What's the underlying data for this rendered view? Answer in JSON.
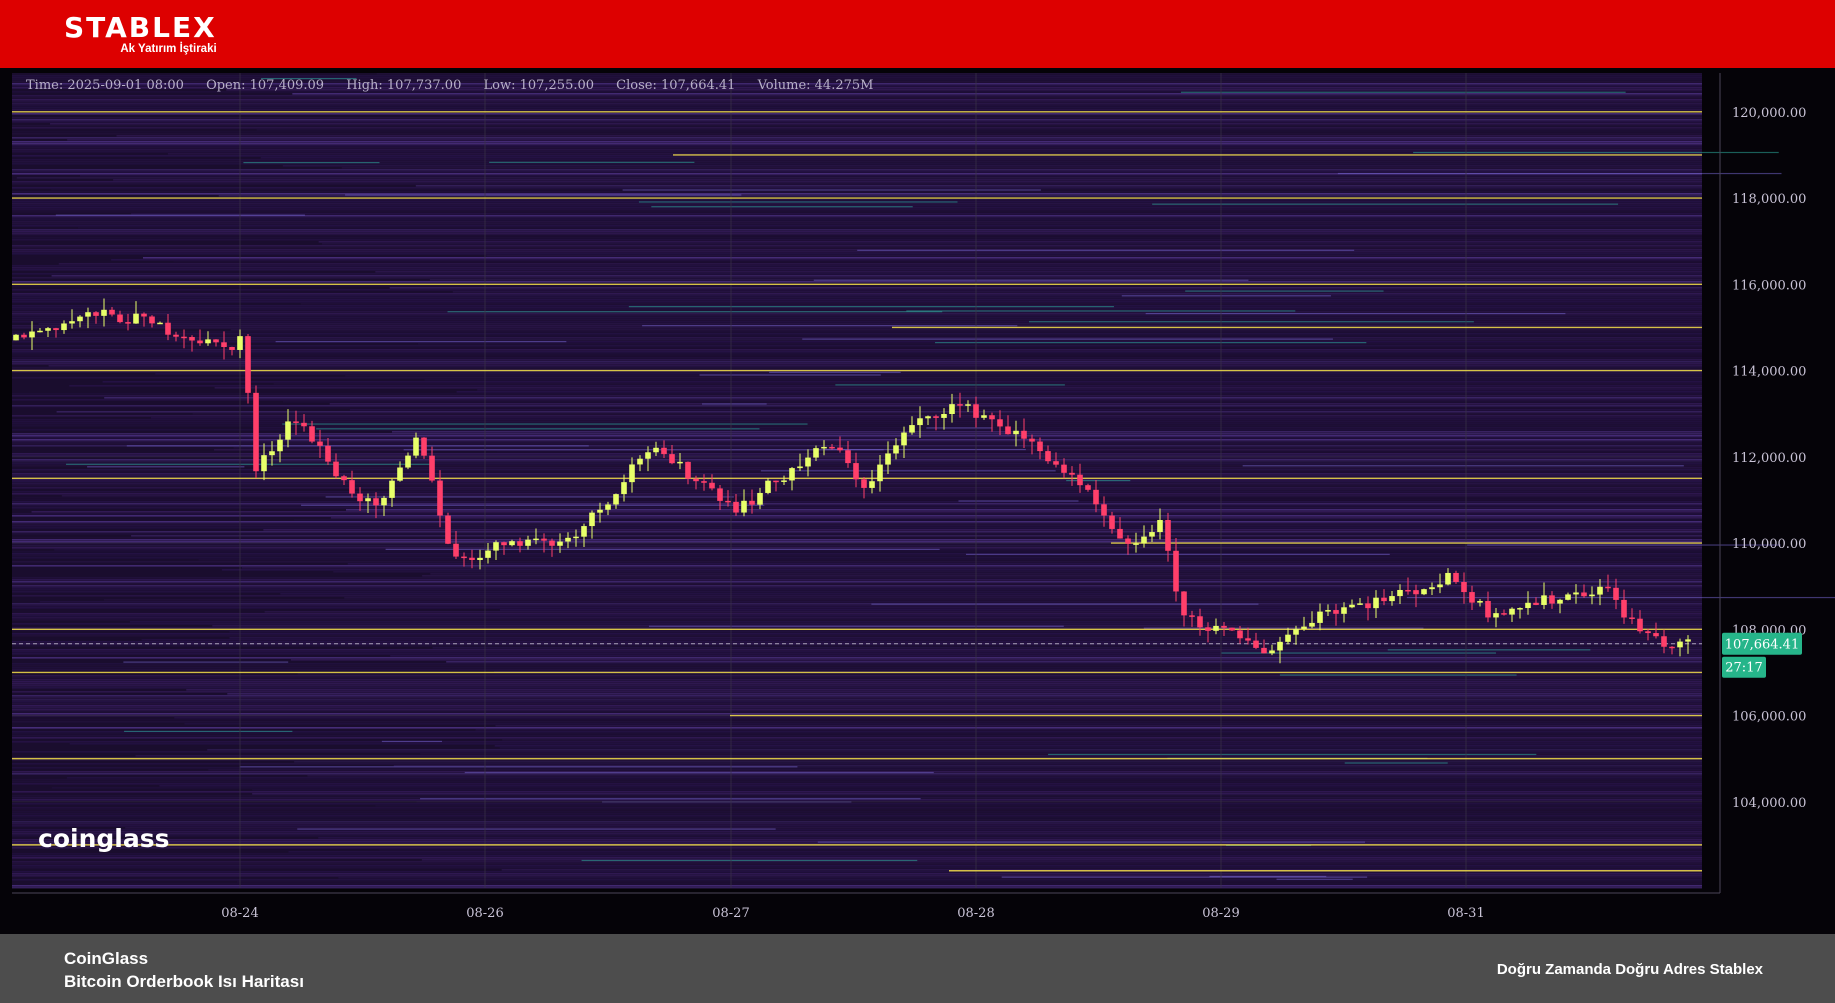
{
  "header": {
    "brand": "STABLEX",
    "tagline": "Ak Yatırım İştiraki"
  },
  "info_bar": {
    "time": "Time: 2025-09-01 08:00",
    "open": "Open: 107,409.09",
    "high": "High: 107,737.00",
    "low": "Low: 107,255.00",
    "close": "Close: 107,664.41",
    "volume": "Volume: 44.275M"
  },
  "watermark": "coinglass",
  "footer": {
    "source": "CoinGlass",
    "title": "Bitcoin Orderbook Isı Haritası",
    "slogan": "Doğru Zamanda Doğru Adres Stablex"
  },
  "colors": {
    "up": "#e8ff6a",
    "down": "#ff3f6a",
    "heat_base": "#3c1f66",
    "liquidity_line": "#f5e04a",
    "price_badge": "#26b58a"
  },
  "chart_data": {
    "type": "candlestick-heatmap",
    "title": "",
    "x_ticks": [
      "08-24",
      "08-26",
      "08-27",
      "08-28",
      "08-29",
      "08-31"
    ],
    "y_ticks": [
      "104,000.00",
      "106,000.00",
      "108,000.00",
      "110,000.00",
      "112,000.00",
      "114,000.00",
      "116,000.00",
      "118,000.00",
      "120,000.00"
    ],
    "y_tick_values": [
      104000,
      106000,
      108000,
      110000,
      112000,
      114000,
      116000,
      118000,
      120000
    ],
    "ylim": [
      102000,
      120900
    ],
    "current_price": 107664.41,
    "current_price_label": "107,664.41",
    "countdown": "27:17",
    "liquidity_levels": [
      120000,
      119000,
      118000,
      116000,
      115000,
      114000,
      111500,
      110000,
      108000,
      107000,
      106000,
      105000,
      103000,
      102400
    ],
    "close_anchors": [
      [
        0,
        114700
      ],
      [
        0.05,
        115300
      ],
      [
        0.075,
        115200
      ],
      [
        0.1,
        114900
      ],
      [
        0.13,
        114500
      ],
      [
        0.14,
        114800
      ],
      [
        0.147,
        111600
      ],
      [
        0.17,
        113000
      ],
      [
        0.2,
        111400
      ],
      [
        0.22,
        110700
      ],
      [
        0.245,
        112500
      ],
      [
        0.265,
        109600
      ],
      [
        0.285,
        109800
      ],
      [
        0.3,
        110100
      ],
      [
        0.33,
        110000
      ],
      [
        0.355,
        110900
      ],
      [
        0.38,
        112200
      ],
      [
        0.41,
        111500
      ],
      [
        0.435,
        110800
      ],
      [
        0.47,
        111800
      ],
      [
        0.49,
        112300
      ],
      [
        0.51,
        111300
      ],
      [
        0.535,
        112600
      ],
      [
        0.56,
        113200
      ],
      [
        0.58,
        113000
      ],
      [
        0.62,
        112000
      ],
      [
        0.645,
        111000
      ],
      [
        0.665,
        109800
      ],
      [
        0.685,
        110500
      ],
      [
        0.7,
        108300
      ],
      [
        0.75,
        107500
      ],
      [
        0.78,
        108400
      ],
      [
        0.82,
        108700
      ],
      [
        0.86,
        109200
      ],
      [
        0.88,
        108400
      ],
      [
        0.92,
        108700
      ],
      [
        0.95,
        109000
      ],
      [
        0.97,
        108000
      ],
      [
        0.99,
        107600
      ],
      [
        1,
        107660
      ]
    ]
  }
}
